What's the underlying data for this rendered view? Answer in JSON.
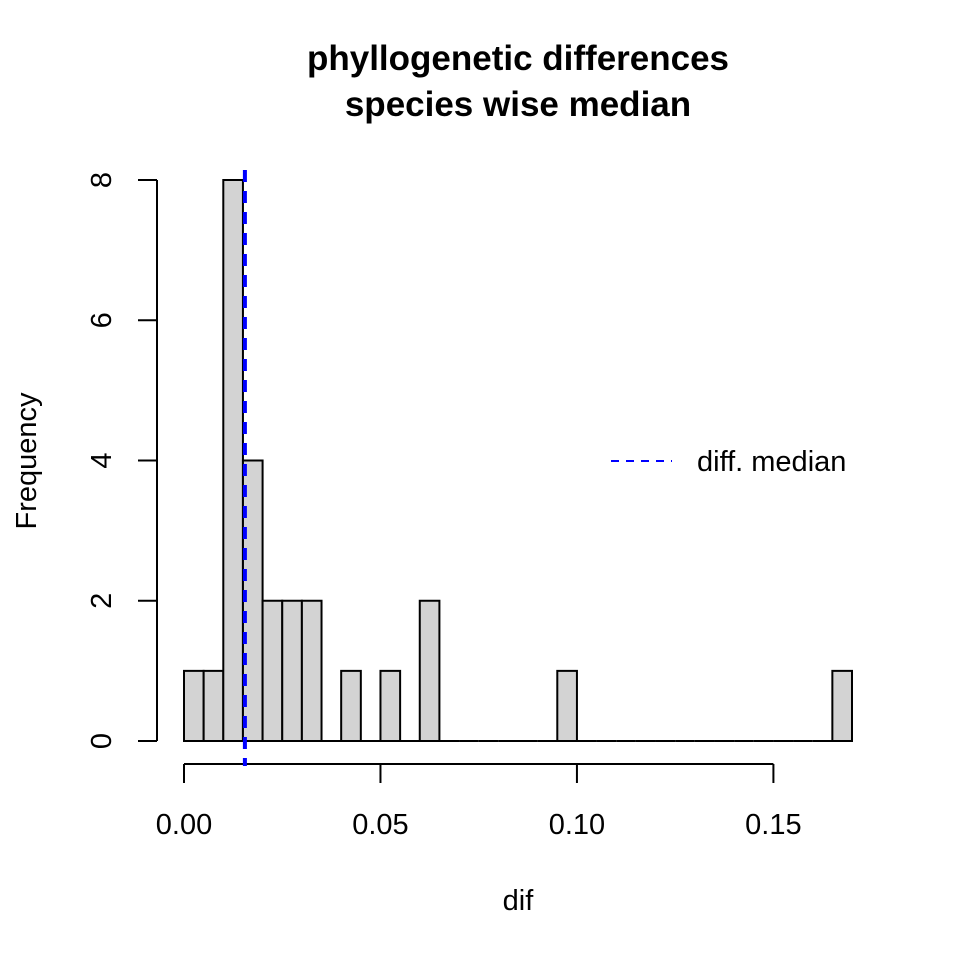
{
  "chart_data": {
    "type": "bar",
    "title": "phyllogenetic differences",
    "subtitle": "species wise median",
    "xlabel": "dif",
    "ylabel": "Frequency",
    "bin_width": 0.005,
    "bins_start": 0.0,
    "values": [
      1,
      1,
      8,
      4,
      2,
      2,
      2,
      0,
      1,
      0,
      1,
      0,
      2,
      0,
      0,
      0,
      0,
      0,
      0,
      1,
      0,
      0,
      0,
      0,
      0,
      0,
      0,
      0,
      0,
      0,
      0,
      0,
      0,
      1
    ],
    "xlim": [
      0.0,
      0.17
    ],
    "ylim": [
      0,
      8
    ],
    "x_ticks": [
      0.0,
      0.05,
      0.1,
      0.15
    ],
    "x_tick_labels": [
      "0.00",
      "0.05",
      "0.10",
      "0.15"
    ],
    "y_ticks": [
      0,
      2,
      4,
      6,
      8
    ],
    "y_tick_labels": [
      "0",
      "2",
      "4",
      "6",
      "8"
    ],
    "median_line": {
      "x": 0.0155,
      "color": "#0000ff",
      "style": "dashed"
    },
    "legend": {
      "placement": "right",
      "entries": [
        {
          "label": "diff. median",
          "color": "#0000ff",
          "style": "dashed"
        }
      ]
    },
    "bar_fill": "#d3d3d3",
    "grid": false
  }
}
